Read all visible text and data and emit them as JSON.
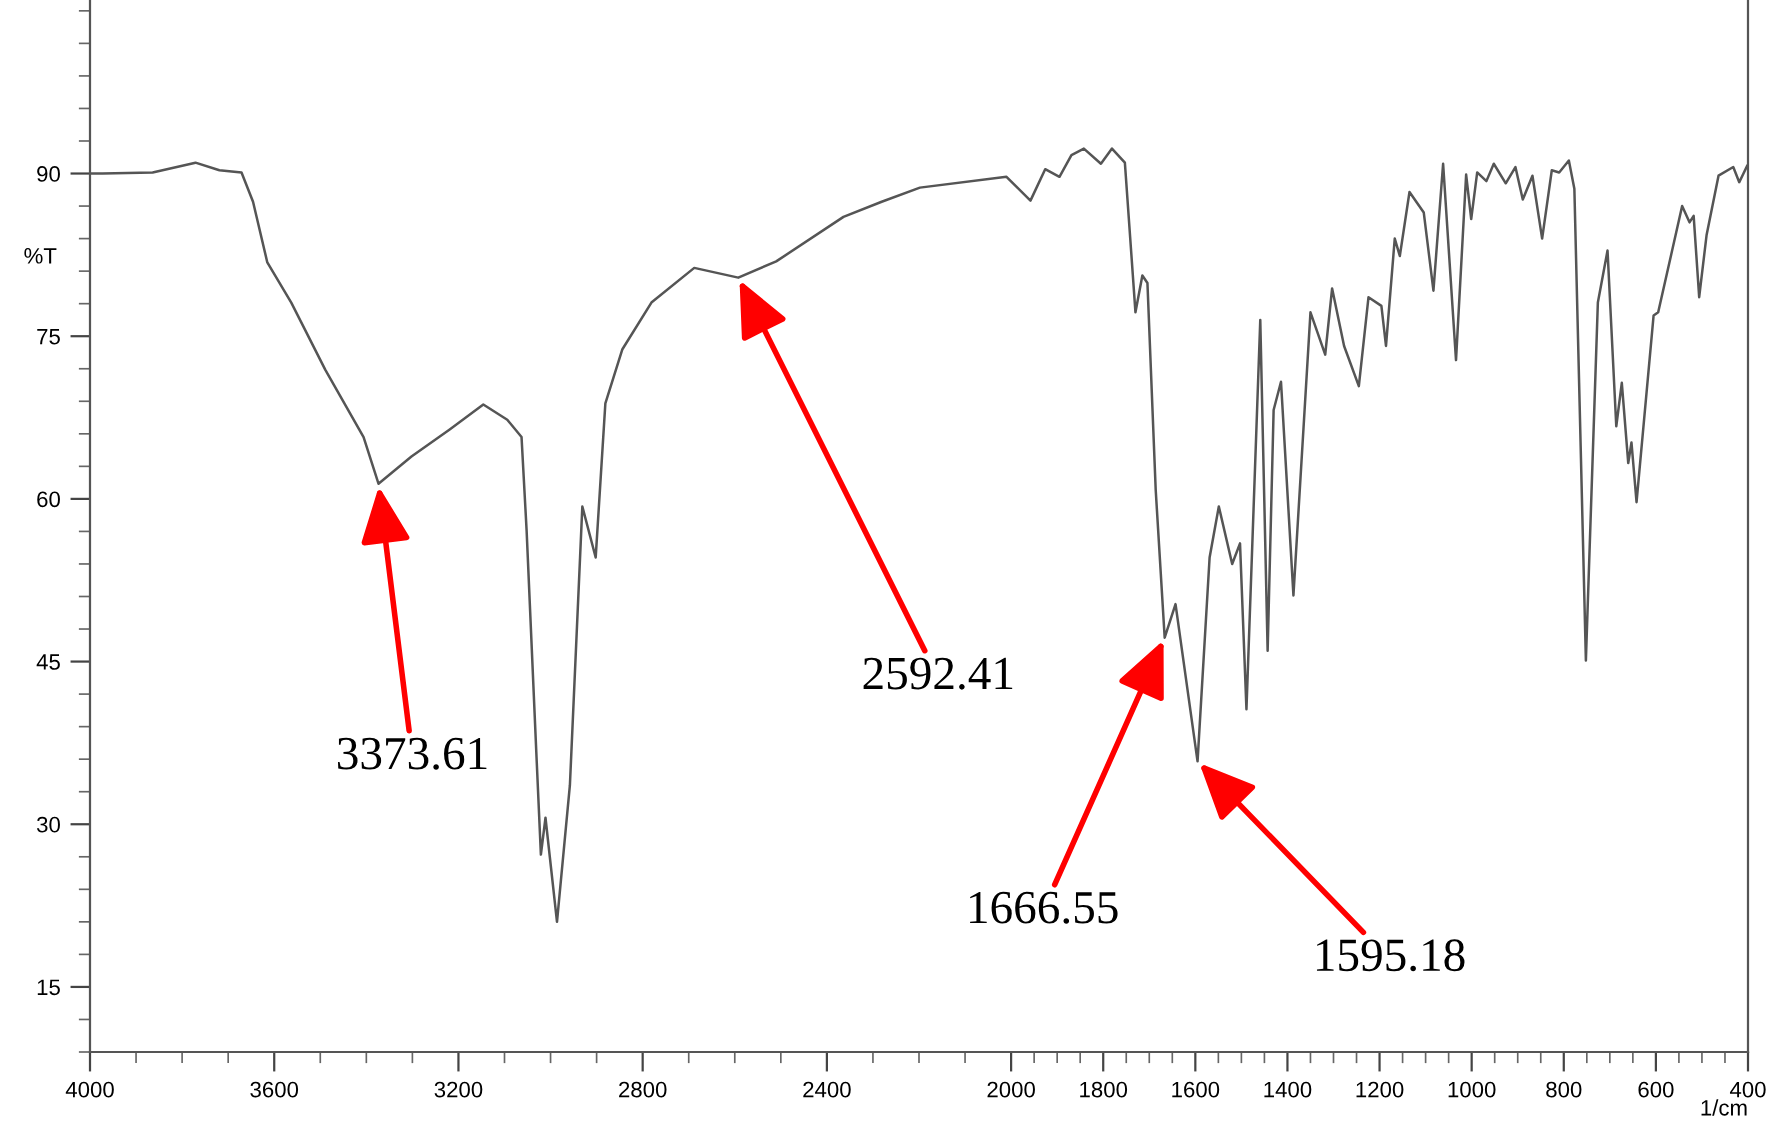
{
  "chart_data": {
    "type": "line",
    "xlabel": "1/cm",
    "ylabel": "%T",
    "color": "#555555",
    "x": [
      4000,
      3973,
      3864,
      3771,
      3719,
      3671,
      3646,
      3615,
      3563,
      3489,
      3406,
      3373.61,
      3302,
      3219,
      3146,
      3094,
      3063,
      3052,
      3031,
      3021,
      3011,
      2986,
      2958,
      2931,
      2902,
      2881,
      2844,
      2781,
      2688,
      2592.41,
      2510,
      2364,
      2281,
      2198,
      2010,
      1958,
      1926,
      1895,
      1869,
      1842,
      1805,
      1781,
      1753,
      1730,
      1715,
      1704,
      1686,
      1666.55,
      1643,
      1595.18,
      1569,
      1549,
      1520,
      1503,
      1489,
      1459,
      1443,
      1430,
      1414,
      1387,
      1350,
      1318,
      1303,
      1277,
      1245,
      1224,
      1196,
      1186,
      1167,
      1156,
      1135,
      1104,
      1083,
      1062,
      1034,
      1012,
      1001,
      988,
      968,
      952,
      926,
      905,
      889,
      868,
      847,
      826,
      810,
      789,
      777,
      752,
      726,
      705,
      686,
      674,
      660,
      653,
      642,
      605,
      595,
      543,
      527,
      518,
      506,
      490,
      464,
      432,
      419,
      402
    ],
    "values": [
      90.0,
      90.0,
      90.1,
      91.0,
      90.3,
      90.1,
      87.4,
      81.8,
      78.1,
      71.9,
      65.7,
      61.4,
      63.9,
      66.4,
      68.7,
      67.3,
      65.7,
      57.1,
      36.7,
      27.2,
      30.6,
      21.0,
      33.6,
      59.3,
      54.6,
      68.8,
      73.8,
      78.1,
      81.3,
      80.4,
      81.9,
      86.0,
      87.4,
      88.7,
      89.7,
      87.5,
      90.4,
      89.7,
      91.7,
      92.3,
      90.9,
      92.3,
      91.0,
      77.2,
      80.6,
      79.9,
      60.8,
      47.2,
      50.3,
      35.8,
      54.6,
      59.3,
      54.0,
      55.9,
      40.6,
      76.5,
      46.0,
      68.2,
      70.8,
      51.1,
      77.2,
      73.3,
      79.4,
      74.1,
      70.4,
      78.6,
      77.8,
      74.1,
      84.0,
      82.4,
      88.3,
      86.4,
      79.2,
      90.9,
      72.8,
      89.9,
      85.8,
      90.1,
      89.3,
      90.9,
      89.1,
      90.6,
      87.6,
      89.8,
      84.0,
      90.3,
      90.1,
      91.2,
      88.6,
      45.1,
      78.1,
      82.9,
      66.7,
      70.7,
      63.3,
      65.2,
      59.7,
      76.9,
      77.2,
      87.0,
      85.5,
      86.1,
      78.6,
      84.3,
      89.8,
      90.6,
      89.2,
      90.7
    ],
    "xlim": [
      4000,
      400
    ],
    "ylim": [
      9,
      106
    ],
    "xticks": [
      4000,
      3600,
      3200,
      2800,
      2400,
      2000,
      1800,
      1600,
      1400,
      1200,
      1000,
      800,
      600,
      400
    ],
    "yticks": [
      15,
      30,
      45,
      60,
      75,
      90
    ],
    "grid": false,
    "annotations": [
      {
        "text": "3373.61",
        "x": 3373.61,
        "y": 61.4
      },
      {
        "text": "2592.41",
        "x": 2592.41,
        "y": 80.4
      },
      {
        "text": "1666.55",
        "x": 1666.55,
        "y": 47.2
      },
      {
        "text": "1595.18",
        "x": 1595.18,
        "y": 35.8
      }
    ]
  }
}
